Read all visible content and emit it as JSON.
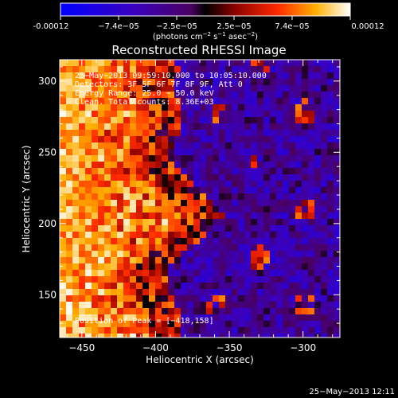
{
  "colorbar": {
    "ticks": [
      "-0.00012",
      "−7.4e−05",
      "−2.5e−05",
      "2.5e−05",
      "7.4e−05",
      "0.00012"
    ],
    "units_main": "(photons cm",
    "units_exp1": "−2",
    "units_mid": " s",
    "units_exp2": "−1",
    "units_mid2": " asec",
    "units_exp3": "−2",
    "units_end": ")"
  },
  "chart_data": {
    "type": "heatmap",
    "title": "Reconstructed RHESSI Image",
    "xlabel": "Heliocentric X (arcsec)",
    "ylabel": "Heliocentric Y (arcsec)",
    "xlim": [
      -465,
      -275
    ],
    "ylim": [
      120,
      315
    ],
    "xticks": [
      -450,
      -400,
      -350,
      -300
    ],
    "yticks": [
      150,
      200,
      250,
      300
    ],
    "color_range": [
      -0.00012,
      0.00012
    ],
    "peak_position": [
      -418,
      158
    ],
    "annotations": [
      "25−May−2013 09:59:10.000 to 10:05:10.000",
      "Detectors: 3F 5F 6F 7F 8F 9F, Att 0",
      "Energy Range: 25.0 − 50.0 keV",
      "Clean.   Total counts: 8.36E+03"
    ],
    "peak_label": "Position of Peak = [−418,158]"
  },
  "footer": {
    "timestamp": "25−May−2013 12:11"
  }
}
